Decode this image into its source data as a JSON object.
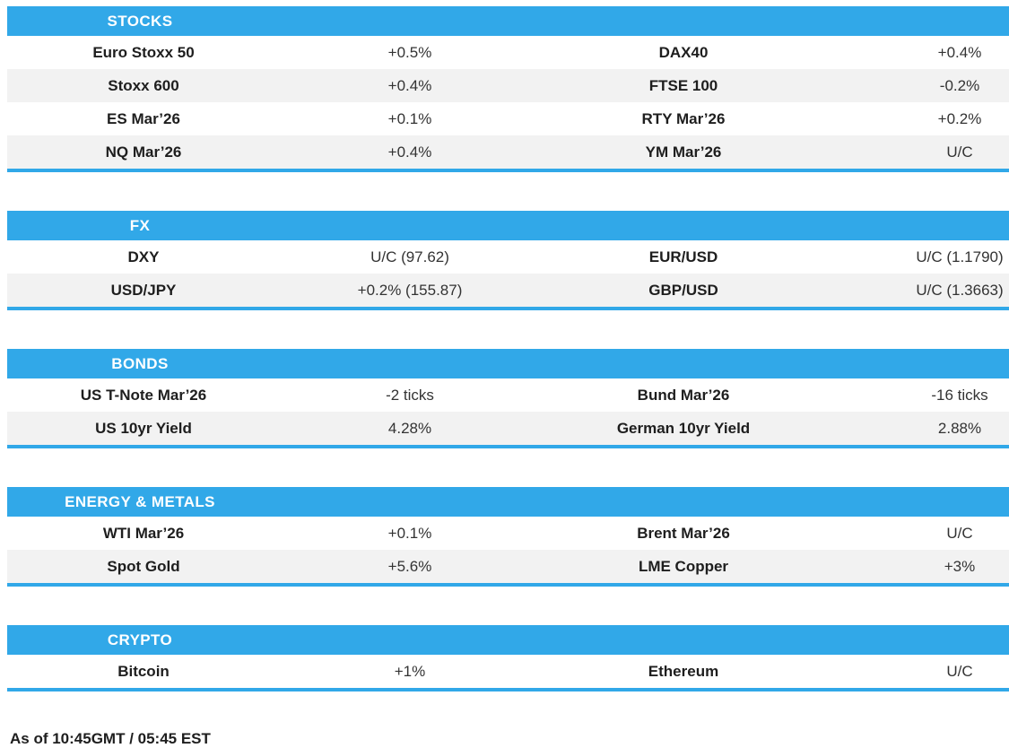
{
  "accent_color": "#31a8e8",
  "row_alt_color": "#f2f2f2",
  "sections": [
    {
      "title": "STOCKS",
      "rows": [
        [
          "Euro Stoxx 50",
          "+0.5%",
          "DAX40",
          "+0.4%"
        ],
        [
          "Stoxx 600",
          "+0.4%",
          "FTSE 100",
          "-0.2%"
        ],
        [
          "ES Mar’26",
          "+0.1%",
          "RTY Mar’26",
          "+0.2%"
        ],
        [
          "NQ Mar’26",
          "+0.4%",
          "YM Mar’26",
          "U/C"
        ]
      ]
    },
    {
      "title": "FX",
      "rows": [
        [
          "DXY",
          "U/C (97.62)",
          "EUR/USD",
          "U/C (1.1790)"
        ],
        [
          "USD/JPY",
          "+0.2% (155.87)",
          "GBP/USD",
          "U/C (1.3663)"
        ]
      ]
    },
    {
      "title": "BONDS",
      "rows": [
        [
          "US T-Note Mar’26",
          "-2 ticks",
          "Bund Mar’26",
          "-16 ticks"
        ],
        [
          "US 10yr Yield",
          "4.28%",
          "German 10yr Yield",
          "2.88%"
        ]
      ]
    },
    {
      "title": "ENERGY & METALS",
      "rows": [
        [
          "WTI Mar’26",
          "+0.1%",
          "Brent Mar’26",
          "U/C"
        ],
        [
          "Spot Gold",
          "+5.6%",
          "LME Copper",
          "+3%"
        ]
      ]
    },
    {
      "title": "CRYPTO",
      "rows": [
        [
          "Bitcoin",
          "+1%",
          "Ethereum",
          "U/C"
        ]
      ]
    }
  ],
  "footer": {
    "as_of": "As of 10:45GMT / 05:45 EST"
  }
}
